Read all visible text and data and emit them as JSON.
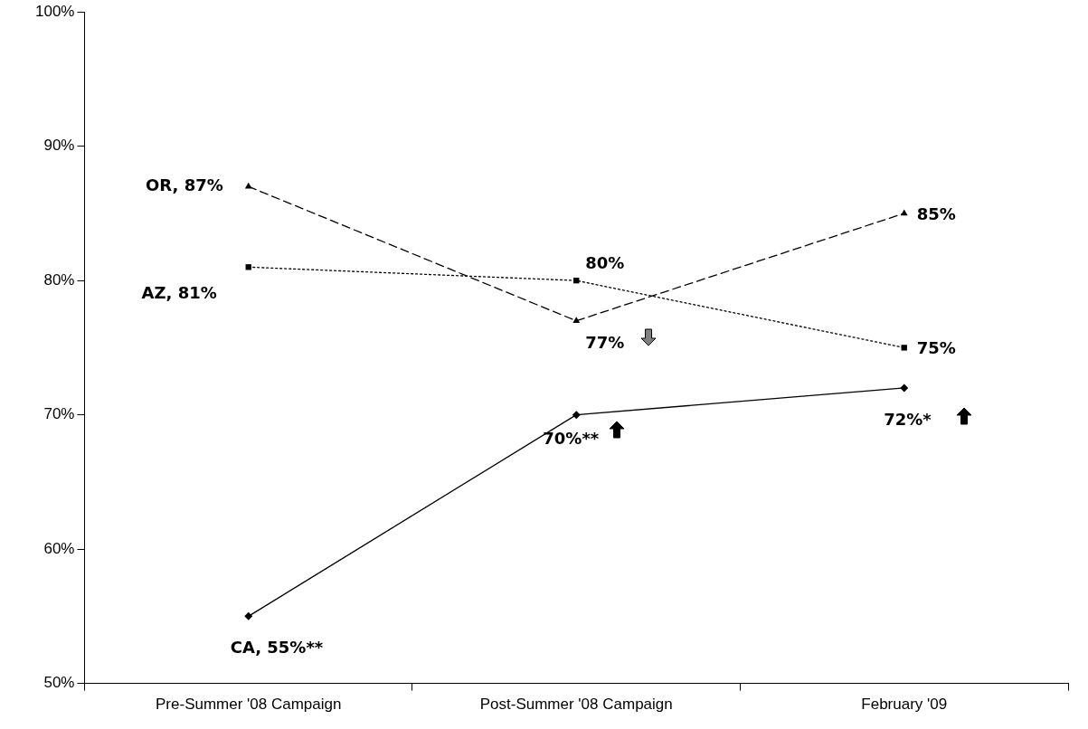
{
  "chart_data": {
    "type": "line",
    "categories": [
      "Pre-Summer '08 Campaign",
      "Post-Summer '08 Campaign",
      "February '09"
    ],
    "ylim": [
      50,
      100
    ],
    "yticks": [
      {
        "value": 50,
        "label": "50%"
      },
      {
        "value": 60,
        "label": "60%"
      },
      {
        "value": 70,
        "label": "70%"
      },
      {
        "value": 80,
        "label": "80%"
      },
      {
        "value": 90,
        "label": "90%"
      },
      {
        "value": 100,
        "label": "100%"
      }
    ],
    "legend": false,
    "series": [
      {
        "color": "#000000",
        "marker": "triangle",
        "line_style": "dashed",
        "values": [
          87,
          77,
          85
        ],
        "value_labels": [
          "OR, 87%",
          "77%",
          "85%"
        ]
      },
      {
        "color": "#000000",
        "marker": "square",
        "line_style": "dotted",
        "values": [
          81,
          80,
          75
        ],
        "value_labels": [
          "AZ, 81%",
          "80%",
          "75%"
        ]
      },
      {
        "color": "#000000",
        "marker": "diamond",
        "line_style": "solid",
        "values": [
          55,
          70,
          72
        ],
        "value_labels": [
          "CA, 55%**",
          "70%**",
          "72%*"
        ]
      }
    ]
  }
}
